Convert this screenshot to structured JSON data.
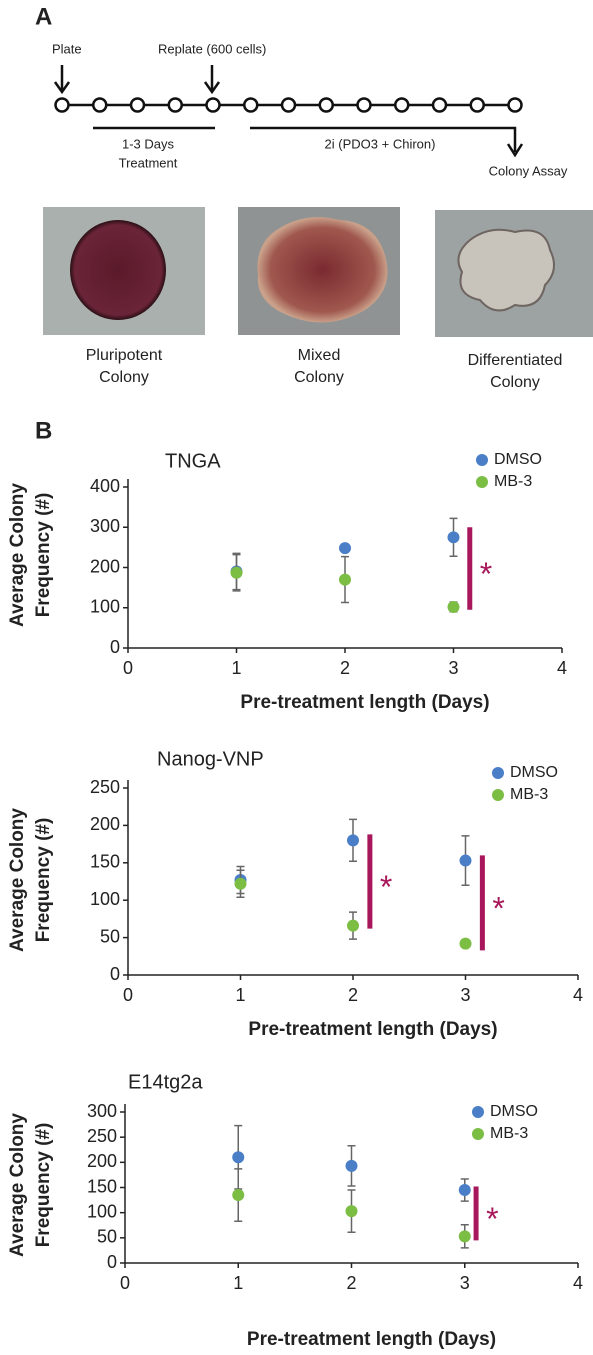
{
  "panel_a": {
    "label": "A",
    "plate": "Plate",
    "replate": "Replate (600 cells)",
    "treatment": [
      "1-3 Days",
      "Treatment"
    ],
    "culture": "2i (PDO3 + Chiron)",
    "assay": "Colony Assay",
    "colonies": [
      [
        "Pluripotent",
        "Colony"
      ],
      [
        "Mixed",
        "Colony"
      ],
      [
        "Differentiated",
        "Colony"
      ]
    ]
  },
  "panel_b": {
    "label": "B"
  },
  "chart_data": [
    {
      "type": "scatter",
      "title": "TNGA",
      "xlabel": "Pre-treatment length (Days)",
      "ylabel": [
        "Average Colony",
        "Frequency (#)"
      ],
      "xlim": [
        0,
        4
      ],
      "xticks": [
        0,
        1,
        2,
        3,
        4
      ],
      "ylim": [
        0,
        400
      ],
      "yticks": [
        0,
        100,
        200,
        300,
        400
      ],
      "legend": "upper right",
      "x": [
        1,
        2,
        3
      ],
      "series": [
        {
          "name": "DMSO",
          "color": "#4a7fc8",
          "values": [
            190,
            248,
            275
          ],
          "errors": [
            45,
            5,
            47
          ]
        },
        {
          "name": "MB-3",
          "color": "#7cbd44",
          "values": [
            187,
            170,
            102
          ],
          "errors": [
            45,
            57,
            12
          ]
        }
      ],
      "significance": [
        {
          "label": "*",
          "x": 3.15,
          "from": 95,
          "to": 300,
          "color": "#a8175b"
        }
      ]
    },
    {
      "type": "scatter",
      "title": "Nanog-VNP",
      "xlabel": "Pre-treatment length (Days)",
      "ylabel": [
        "Average Colony",
        "Frequency (#)"
      ],
      "xlim": [
        0,
        4
      ],
      "xticks": [
        0,
        1,
        2,
        3,
        4
      ],
      "ylim": [
        0,
        250
      ],
      "yticks": [
        0,
        50,
        100,
        150,
        200,
        250
      ],
      "legend": "upper right",
      "x": [
        1,
        2,
        3
      ],
      "series": [
        {
          "name": "DMSO",
          "color": "#4a7fc8",
          "values": [
            127,
            180,
            153
          ],
          "errors": [
            18,
            28,
            33
          ]
        },
        {
          "name": "MB-3",
          "color": "#7cbd44",
          "values": [
            122,
            66,
            42
          ],
          "errors": [
            18,
            18,
            3
          ]
        }
      ],
      "significance": [
        {
          "label": "*",
          "x": 2.15,
          "from": 62,
          "to": 188,
          "color": "#a8175b"
        },
        {
          "label": "*",
          "x": 3.15,
          "from": 33,
          "to": 160,
          "color": "#a8175b"
        }
      ]
    },
    {
      "type": "scatter",
      "title": "E14tg2a",
      "xlabel": "Pre-treatment length (Days)",
      "ylabel": [
        "Average Colony",
        "Frequency (#)"
      ],
      "xlim": [
        0,
        4
      ],
      "xticks": [
        0,
        1,
        2,
        3,
        4
      ],
      "ylim": [
        0,
        300
      ],
      "yticks": [
        0,
        50,
        100,
        150,
        200,
        250,
        300
      ],
      "legend": "upper right",
      "x": [
        1,
        2,
        3
      ],
      "series": [
        {
          "name": "DMSO",
          "color": "#4a7fc8",
          "values": [
            210,
            193,
            145
          ],
          "errors": [
            63,
            40,
            22
          ]
        },
        {
          "name": "MB-3",
          "color": "#7cbd44",
          "values": [
            135,
            103,
            53
          ],
          "errors": [
            52,
            42,
            23
          ]
        }
      ],
      "significance": [
        {
          "label": "*",
          "x": 3.1,
          "from": 45,
          "to": 152,
          "color": "#a8175b"
        }
      ]
    }
  ]
}
